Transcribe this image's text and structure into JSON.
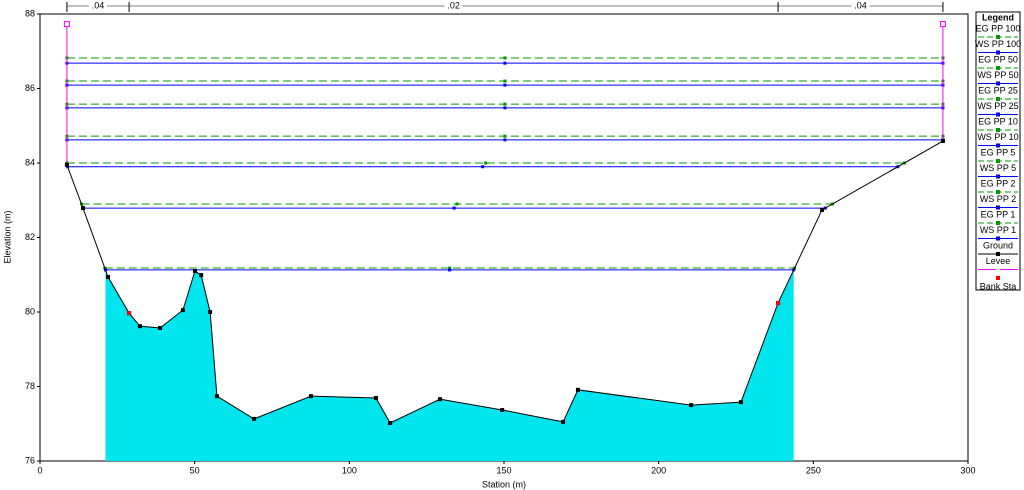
{
  "chart_data": {
    "type": "cross-section",
    "x_label": "Station (m)",
    "y_label": "Elevation (m)",
    "xlim": [
      0,
      300
    ],
    "xticks": [
      0,
      50,
      100,
      150,
      200,
      250,
      300
    ],
    "ylim": [
      76,
      88
    ],
    "yticks": [
      76,
      78,
      80,
      82,
      84,
      86,
      88
    ],
    "legend_title": "Legend",
    "manning": {
      "stations": [
        8.7,
        28.8,
        238.6,
        291.9
      ],
      "labels": [
        ".04",
        ".02",
        ".04"
      ]
    },
    "series": [
      {
        "name": "EG PP 100",
        "color": "#009900",
        "dash": true,
        "value": 86.82
      },
      {
        "name": "WS PP 100",
        "color": "#0000ff",
        "dash": false,
        "value": 86.68
      },
      {
        "name": "EG PP 50",
        "color": "#009900",
        "dash": true,
        "value": 86.2
      },
      {
        "name": "WS PP 50",
        "color": "#0000ff",
        "dash": false,
        "value": 86.09
      },
      {
        "name": "EG PP 25",
        "color": "#009900",
        "dash": true,
        "value": 85.58
      },
      {
        "name": "WS PP 25",
        "color": "#0000ff",
        "dash": false,
        "value": 85.48
      },
      {
        "name": "EG PP 10",
        "color": "#009900",
        "dash": true,
        "value": 84.72
      },
      {
        "name": "WS PP 10",
        "color": "#0000ff",
        "dash": false,
        "value": 84.62
      },
      {
        "name": "EG PP 5",
        "color": "#009900",
        "dash": true,
        "value": 84.0
      },
      {
        "name": "WS PP 5",
        "color": "#0000ff",
        "dash": false,
        "value": 83.9
      },
      {
        "name": "EG PP 2",
        "color": "#009900",
        "dash": true,
        "value": 82.9
      },
      {
        "name": "WS PP 2",
        "color": "#0000ff",
        "dash": false,
        "value": 82.79
      },
      {
        "name": "EG PP 1",
        "color": "#009900",
        "dash": true,
        "value": 81.18
      },
      {
        "name": "WS PP 1",
        "color": "#0000ff",
        "dash": false,
        "value": 81.13,
        "fill": "#00e5ee"
      }
    ],
    "ground": {
      "name": "Ground",
      "color": "#000000",
      "x": [
        8.7,
        13.9,
        22.0,
        28.8,
        32.3,
        38.8,
        46.2,
        50.1,
        52.1,
        55.0,
        57.2,
        69.2,
        87.6,
        108.6,
        113.2,
        129.3,
        149.4,
        169.1,
        173.9,
        210.5,
        226.6,
        238.6,
        252.8,
        291.9
      ],
      "y": [
        83.95,
        82.79,
        80.94,
        79.97,
        79.62,
        79.57,
        80.05,
        81.1,
        80.99,
        80.0,
        77.74,
        77.13,
        77.74,
        77.69,
        77.02,
        77.66,
        77.37,
        77.05,
        77.91,
        77.5,
        77.58,
        80.24,
        82.74,
        84.59
      ]
    },
    "levee": {
      "name": "Levee",
      "color": "#ff00ff",
      "x": [
        8.7,
        291.9
      ],
      "y": [
        83.95,
        84.59
      ],
      "top": 87.73
    },
    "bank": {
      "name": "Bank Sta",
      "color": "#ff0000",
      "x": [
        28.8,
        238.6
      ],
      "y": [
        79.97,
        80.24
      ]
    }
  }
}
